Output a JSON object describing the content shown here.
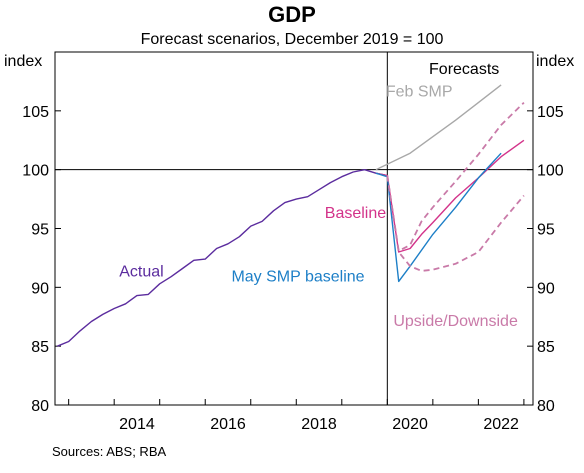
{
  "chart_data": {
    "type": "line",
    "title": "GDP",
    "subtitle": "Forecast scenarios, December 2019 = 100",
    "ylabel_left": "index",
    "ylabel_right": "index",
    "ylim": [
      80,
      110
    ],
    "yticks": [
      80,
      85,
      90,
      95,
      100,
      105
    ],
    "xlim": [
      2012.7,
      2023.2
    ],
    "xticks": [
      2014,
      2016,
      2018,
      2020,
      2022
    ],
    "forecast_start": 2020.0,
    "forecast_label": "Forecasts",
    "grid": "horizontal line at 100",
    "source": "Sources:   ABS; RBA",
    "series": [
      {
        "name": "Actual",
        "color": "#5b2c9e",
        "style": "solid",
        "x": [
          2012.75,
          2013.0,
          2013.25,
          2013.5,
          2013.75,
          2014.0,
          2014.25,
          2014.5,
          2014.75,
          2015.0,
          2015.25,
          2015.5,
          2015.75,
          2016.0,
          2016.25,
          2016.5,
          2016.75,
          2017.0,
          2017.25,
          2017.5,
          2017.75,
          2018.0,
          2018.25,
          2018.5,
          2018.75,
          2019.0,
          2019.25,
          2019.5,
          2019.75,
          2020.0
        ],
        "values": [
          85.0,
          85.4,
          86.3,
          87.1,
          87.7,
          88.2,
          88.6,
          89.3,
          89.4,
          90.3,
          90.9,
          91.6,
          92.3,
          92.4,
          93.3,
          93.7,
          94.3,
          95.2,
          95.6,
          96.5,
          97.2,
          97.5,
          97.7,
          98.3,
          98.9,
          99.4,
          99.8,
          100.0,
          99.7,
          99.5
        ]
      },
      {
        "name": "Feb SMP",
        "color": "#a8a8a8",
        "style": "solid",
        "x": [
          2019.75,
          2020.5,
          2021.0,
          2021.5,
          2022.0,
          2022.5
        ],
        "values": [
          100.0,
          101.4,
          102.8,
          104.2,
          105.7,
          107.2
        ]
      },
      {
        "name": "Baseline",
        "color": "#d3338a",
        "style": "solid",
        "x": [
          2019.75,
          2020.0,
          2020.25,
          2020.5,
          2020.75,
          2021.0,
          2021.5,
          2022.0,
          2022.5,
          2023.0
        ],
        "values": [
          99.7,
          99.5,
          93.0,
          93.3,
          94.5,
          95.5,
          97.6,
          99.3,
          101.1,
          102.5
        ]
      },
      {
        "name": "May SMP baseline",
        "color": "#1d7fc7",
        "style": "solid",
        "x": [
          2019.75,
          2020.0,
          2020.25,
          2020.5,
          2021.0,
          2021.5,
          2022.0,
          2022.5
        ],
        "values": [
          99.7,
          99.4,
          90.5,
          91.8,
          94.5,
          96.8,
          99.3,
          101.4
        ]
      },
      {
        "name": "Upside",
        "color": "#c97aa8",
        "style": "dashed",
        "x": [
          2020.0,
          2020.25,
          2020.5,
          2020.75,
          2021.0,
          2021.5,
          2022.0,
          2022.5,
          2023.0
        ],
        "values": [
          99.5,
          93.1,
          93.6,
          95.6,
          96.8,
          99.0,
          101.3,
          103.8,
          105.7
        ]
      },
      {
        "name": "Downside",
        "color": "#c97aa8",
        "style": "dashed",
        "x": [
          2020.0,
          2020.25,
          2020.5,
          2020.75,
          2021.0,
          2021.5,
          2022.0,
          2022.5,
          2023.0
        ],
        "values": [
          99.5,
          93.0,
          91.8,
          91.4,
          91.5,
          92.0,
          93.0,
          95.5,
          97.8
        ]
      }
    ],
    "annotations": [
      {
        "text": "Actual",
        "color": "#5b2c9e"
      },
      {
        "text": "Feb SMP",
        "color": "#a8a8a8"
      },
      {
        "text": "Baseline",
        "color": "#d3338a"
      },
      {
        "text": "May SMP baseline",
        "color": "#1d7fc7"
      },
      {
        "text": "Upside/Downside",
        "color": "#c97aa8"
      }
    ]
  }
}
